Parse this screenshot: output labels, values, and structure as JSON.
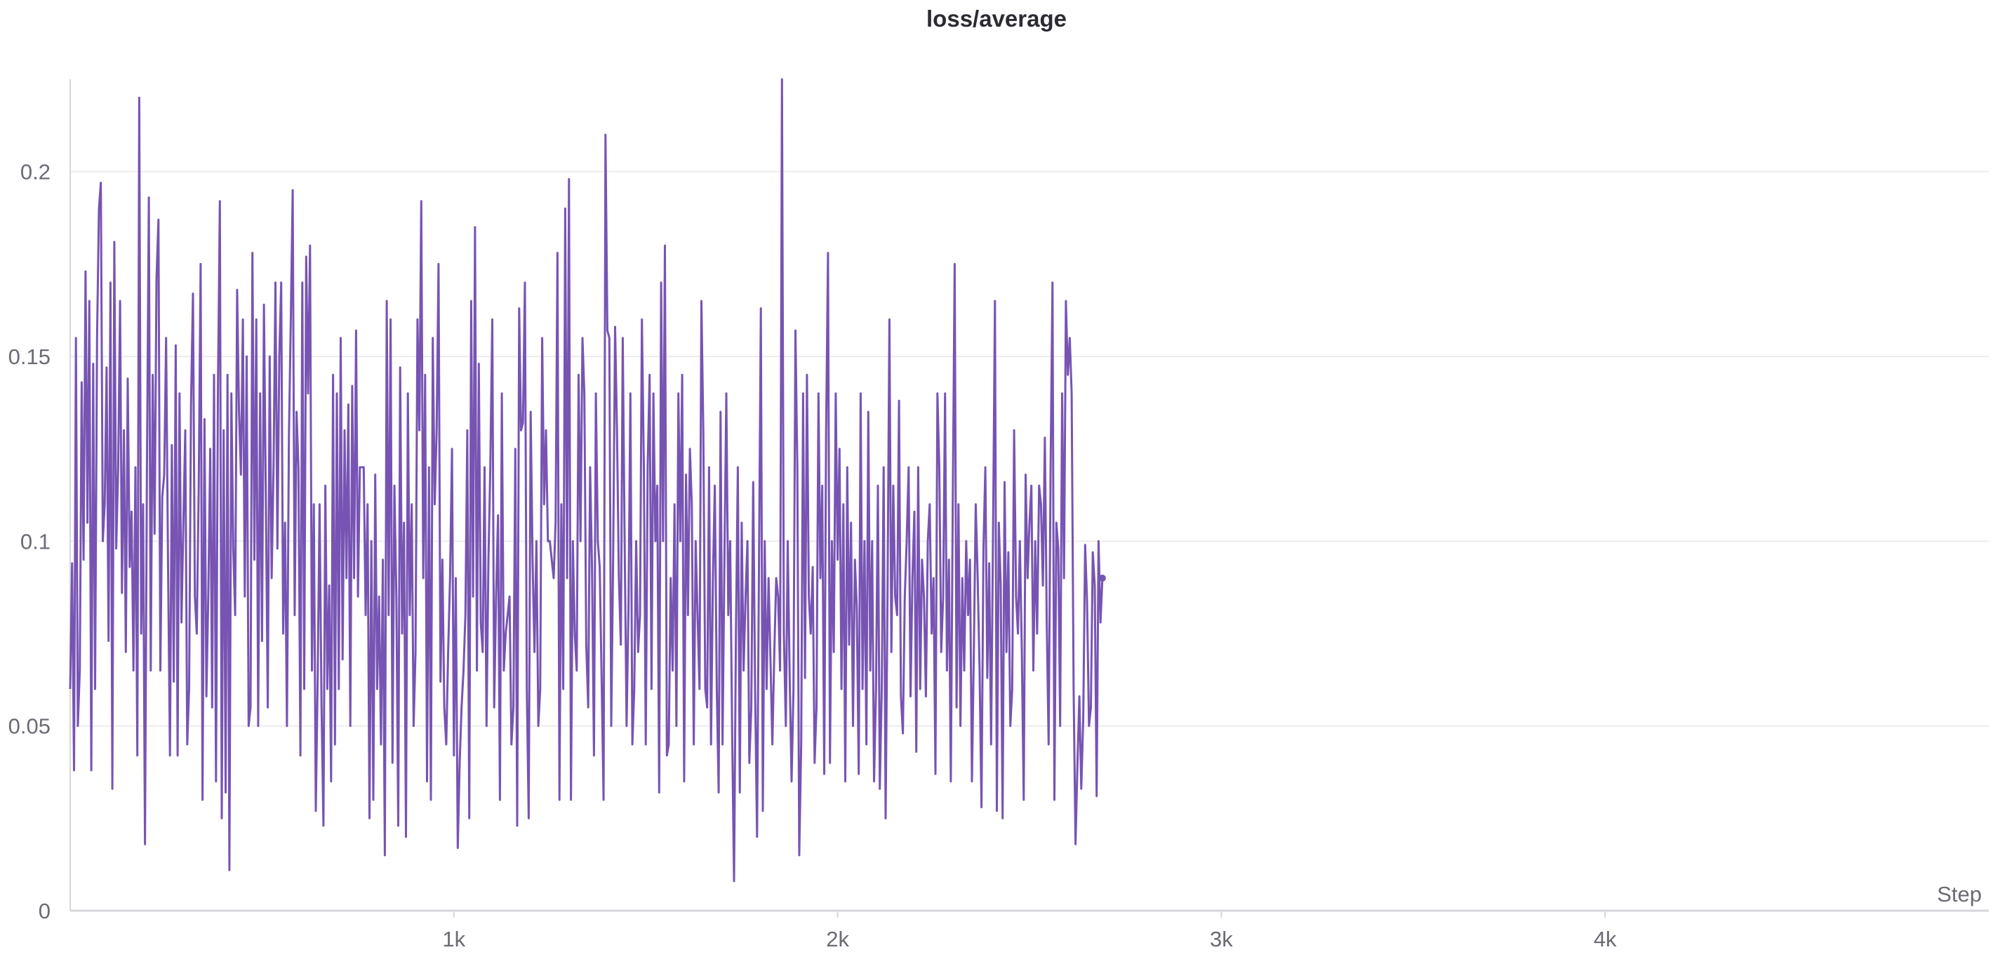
{
  "chart_data": {
    "type": "line",
    "title": "loss/average",
    "xlabel": "Step",
    "ylabel": "",
    "xlim": [
      0,
      5000
    ],
    "ylim": [
      0,
      0.225
    ],
    "x_ticks": [
      {
        "value": 1000,
        "label": "1k"
      },
      {
        "value": 2000,
        "label": "2k"
      },
      {
        "value": 3000,
        "label": "3k"
      },
      {
        "value": 4000,
        "label": "4k"
      }
    ],
    "y_ticks": [
      {
        "value": 0,
        "label": "0"
      },
      {
        "value": 0.05,
        "label": "0.05"
      },
      {
        "value": 0.1,
        "label": "0.1"
      },
      {
        "value": 0.15,
        "label": "0.15"
      },
      {
        "value": 0.2,
        "label": "0.2"
      }
    ],
    "grid": "horizontal",
    "line_color": "#7754b3",
    "series": [
      {
        "x_start": 0,
        "x_step": 5,
        "values": [
          0.06,
          0.094,
          0.038,
          0.155,
          0.05,
          0.065,
          0.143,
          0.095,
          0.173,
          0.105,
          0.165,
          0.038,
          0.148,
          0.06,
          0.155,
          0.19,
          0.197,
          0.1,
          0.11,
          0.147,
          0.073,
          0.17,
          0.033,
          0.181,
          0.098,
          0.12,
          0.165,
          0.086,
          0.13,
          0.07,
          0.144,
          0.093,
          0.108,
          0.065,
          0.12,
          0.042,
          0.22,
          0.075,
          0.11,
          0.018,
          0.12,
          0.193,
          0.065,
          0.145,
          0.102,
          0.171,
          0.187,
          0.065,
          0.112,
          0.118,
          0.155,
          0.095,
          0.042,
          0.126,
          0.062,
          0.153,
          0.042,
          0.14,
          0.078,
          0.105,
          0.13,
          0.045,
          0.06,
          0.137,
          0.167,
          0.085,
          0.075,
          0.115,
          0.175,
          0.03,
          0.133,
          0.058,
          0.085,
          0.125,
          0.055,
          0.145,
          0.035,
          0.14,
          0.192,
          0.025,
          0.13,
          0.032,
          0.145,
          0.011,
          0.14,
          0.098,
          0.08,
          0.168,
          0.135,
          0.118,
          0.16,
          0.085,
          0.15,
          0.05,
          0.055,
          0.178,
          0.095,
          0.16,
          0.05,
          0.14,
          0.073,
          0.164,
          0.11,
          0.055,
          0.15,
          0.09,
          0.12,
          0.17,
          0.098,
          0.15,
          0.17,
          0.075,
          0.105,
          0.05,
          0.128,
          0.16,
          0.195,
          0.08,
          0.135,
          0.12,
          0.042,
          0.17,
          0.06,
          0.177,
          0.14,
          0.18,
          0.065,
          0.11,
          0.027,
          0.063,
          0.11,
          0.055,
          0.023,
          0.115,
          0.06,
          0.088,
          0.035,
          0.145,
          0.045,
          0.14,
          0.06,
          0.155,
          0.068,
          0.13,
          0.09,
          0.137,
          0.05,
          0.142,
          0.09,
          0.157,
          0.085,
          0.12,
          0.12,
          0.12,
          0.08,
          0.11,
          0.025,
          0.1,
          0.03,
          0.118,
          0.06,
          0.085,
          0.045,
          0.095,
          0.015,
          0.165,
          0.08,
          0.16,
          0.04,
          0.115,
          0.085,
          0.023,
          0.147,
          0.075,
          0.105,
          0.02,
          0.14,
          0.08,
          0.11,
          0.05,
          0.07,
          0.16,
          0.13,
          0.192,
          0.09,
          0.145,
          0.035,
          0.12,
          0.03,
          0.155,
          0.11,
          0.13,
          0.175,
          0.062,
          0.095,
          0.055,
          0.045,
          0.07,
          0.09,
          0.125,
          0.042,
          0.09,
          0.017,
          0.04,
          0.055,
          0.065,
          0.08,
          0.13,
          0.025,
          0.165,
          0.085,
          0.185,
          0.065,
          0.148,
          0.078,
          0.07,
          0.12,
          0.05,
          0.095,
          0.12,
          0.16,
          0.055,
          0.085,
          0.107,
          0.03,
          0.14,
          0.065,
          0.075,
          0.08,
          0.085,
          0.045,
          0.055,
          0.125,
          0.023,
          0.163,
          0.13,
          0.132,
          0.17,
          0.06,
          0.025,
          0.135,
          0.095,
          0.07,
          0.1,
          0.05,
          0.06,
          0.155,
          0.11,
          0.13,
          0.1,
          0.1,
          0.095,
          0.09,
          0.105,
          0.178,
          0.03,
          0.11,
          0.06,
          0.19,
          0.09,
          0.198,
          0.03,
          0.1,
          0.075,
          0.065,
          0.145,
          0.1,
          0.155,
          0.14,
          0.072,
          0.055,
          0.12,
          0.093,
          0.042,
          0.14,
          0.1,
          0.093,
          0.063,
          0.03,
          0.21,
          0.157,
          0.155,
          0.05,
          0.095,
          0.158,
          0.13,
          0.09,
          0.072,
          0.155,
          0.1,
          0.05,
          0.082,
          0.14,
          0.045,
          0.06,
          0.1,
          0.07,
          0.08,
          0.16,
          0.12,
          0.045,
          0.12,
          0.145,
          0.06,
          0.14,
          0.1,
          0.115,
          0.032,
          0.17,
          0.1,
          0.18,
          0.042,
          0.045,
          0.09,
          0.065,
          0.11,
          0.05,
          0.14,
          0.1,
          0.145,
          0.035,
          0.118,
          0.08,
          0.125,
          0.11,
          0.045,
          0.1,
          0.08,
          0.06,
          0.165,
          0.13,
          0.06,
          0.055,
          0.12,
          0.045,
          0.09,
          0.115,
          0.06,
          0.032,
          0.135,
          0.045,
          0.095,
          0.14,
          0.08,
          0.1,
          0.05,
          0.008,
          0.075,
          0.12,
          0.032,
          0.105,
          0.065,
          0.085,
          0.1,
          0.04,
          0.055,
          0.116,
          0.06,
          0.02,
          0.092,
          0.163,
          0.027,
          0.1,
          0.06,
          0.09,
          0.068,
          0.045,
          0.07,
          0.09,
          0.085,
          0.065,
          0.225,
          0.075,
          0.05,
          0.1,
          0.063,
          0.035,
          0.06,
          0.157,
          0.12,
          0.015,
          0.045,
          0.14,
          0.063,
          0.145,
          0.085,
          0.075,
          0.093,
          0.04,
          0.055,
          0.14,
          0.09,
          0.115,
          0.037,
          0.13,
          0.178,
          0.04,
          0.1,
          0.07,
          0.14,
          0.095,
          0.125,
          0.06,
          0.11,
          0.035,
          0.12,
          0.072,
          0.105,
          0.05,
          0.095,
          0.082,
          0.037,
          0.14,
          0.06,
          0.1,
          0.045,
          0.135,
          0.065,
          0.1,
          0.035,
          0.06,
          0.115,
          0.033,
          0.06,
          0.12,
          0.025,
          0.085,
          0.16,
          0.07,
          0.115,
          0.085,
          0.08,
          0.138,
          0.058,
          0.048,
          0.085,
          0.1,
          0.12,
          0.058,
          0.09,
          0.108,
          0.043,
          0.12,
          0.06,
          0.095,
          0.085,
          0.058,
          0.1,
          0.11,
          0.075,
          0.09,
          0.037,
          0.14,
          0.12,
          0.07,
          0.085,
          0.14,
          0.065,
          0.095,
          0.035,
          0.108,
          0.175,
          0.055,
          0.11,
          0.05,
          0.09,
          0.065,
          0.1,
          0.08,
          0.095,
          0.035,
          0.07,
          0.11,
          0.09,
          0.065,
          0.028,
          0.098,
          0.12,
          0.063,
          0.094,
          0.045,
          0.103,
          0.165,
          0.027,
          0.105,
          0.088,
          0.025,
          0.116,
          0.07,
          0.097,
          0.05,
          0.06,
          0.13,
          0.085,
          0.075,
          0.1,
          0.07,
          0.03,
          0.118,
          0.09,
          0.105,
          0.115,
          0.065,
          0.1,
          0.075,
          0.115,
          0.11,
          0.088,
          0.128,
          0.078,
          0.045,
          0.12,
          0.17,
          0.03,
          0.105,
          0.098,
          0.05,
          0.14,
          0.09,
          0.165,
          0.145,
          0.155,
          0.14,
          0.06,
          0.018,
          0.04,
          0.058,
          0.033,
          0.052,
          0.099,
          0.084,
          0.05,
          0.055,
          0.097,
          0.088,
          0.031,
          0.1,
          0.078,
          0.09
        ]
      }
    ]
  }
}
